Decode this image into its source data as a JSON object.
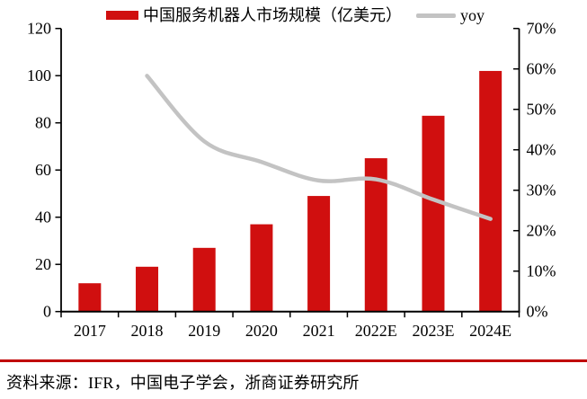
{
  "legend": {
    "bar_label": "中国服务机器人市场规模（亿美元）",
    "line_label": "yoy"
  },
  "chart_data": {
    "type": "bar",
    "subtype": "bar+line-combo",
    "categories": [
      "2017",
      "2018",
      "2019",
      "2020",
      "2021",
      "2022E",
      "2023E",
      "2024E"
    ],
    "series": [
      {
        "name": "中国服务机器人市场规模（亿美元）",
        "type": "bar",
        "axis": "left",
        "color": "#d00f0f",
        "values": [
          12,
          19,
          27,
          37,
          49,
          65,
          83,
          102
        ]
      },
      {
        "name": "yoy",
        "type": "line",
        "axis": "right",
        "color": "#c3c3c3",
        "values": [
          null,
          58.3,
          42.1,
          37.0,
          32.4,
          32.7,
          27.7,
          22.9
        ]
      }
    ],
    "left_axis": {
      "min": 0,
      "max": 120,
      "step": 20,
      "ticks": [
        "0",
        "20",
        "40",
        "60",
        "80",
        "100",
        "120"
      ]
    },
    "right_axis": {
      "min": 0,
      "max": 70,
      "step": 10,
      "ticks": [
        "0%",
        "10%",
        "20%",
        "30%",
        "40%",
        "50%",
        "60%",
        "70%"
      ]
    },
    "grid": false,
    "legend_position": "top",
    "axis_color": "#000000"
  },
  "footer": {
    "source_text": "资料来源：IFR，中国电子学会，浙商证券研究所",
    "divider_color": "#c00000"
  }
}
